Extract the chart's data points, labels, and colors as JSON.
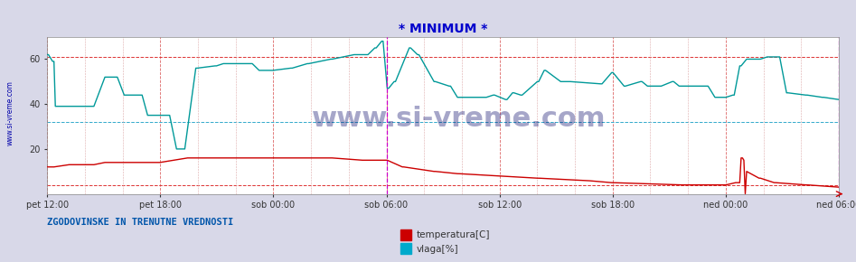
{
  "title": "* MINIMUM *",
  "title_color": "#0000cc",
  "title_fontsize": 10,
  "bg_color": "#d8d8e8",
  "plot_bg_color": "#ffffff",
  "watermark": "www.si-vreme.com",
  "watermark_color": "#000066",
  "watermark_fontsize": 22,
  "side_label": "www.si-vreme.com",
  "side_label_color": "#0000aa",
  "bottom_label": "ZGODOVINSKE IN TRENUTNE VREDNOSTI",
  "bottom_label_color": "#0055aa",
  "legend_entries": [
    "temperatura[C]",
    "vlaga[%]"
  ],
  "legend_colors": [
    "#cc0000",
    "#00aacc"
  ],
  "temp_color": "#cc0000",
  "vlaga_color": "#009999",
  "hline_red1": 4,
  "hline_red2": 61,
  "hline_cyan": 32,
  "ylim": [
    0,
    70
  ],
  "yticks": [
    20,
    40,
    60
  ],
  "xtick_labels": [
    "pet 12:00",
    "pet 18:00",
    "sob 00:00",
    "sob 06:00",
    "sob 12:00",
    "sob 18:00",
    "ned 00:00",
    "ned 06:00"
  ],
  "n_points": 576
}
